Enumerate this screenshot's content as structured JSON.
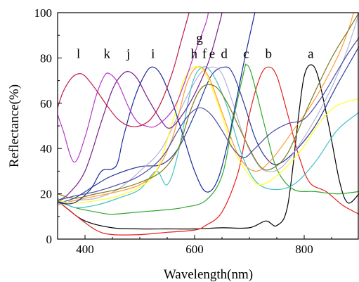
{
  "chart_data": {
    "type": "line",
    "xlabel": "Wavelength(nm)",
    "ylabel": "Reflectance(%)",
    "xlim": [
      350,
      900
    ],
    "ylim": [
      0,
      100
    ],
    "xticks": [
      400,
      600,
      800
    ],
    "yticks": [
      0,
      20,
      40,
      60,
      80,
      100
    ],
    "grid": false,
    "series": [
      {
        "name": "a",
        "color": "#000000",
        "label_pos": [
          812,
          80
        ],
        "points": [
          [
            350,
            17
          ],
          [
            370,
            13
          ],
          [
            400,
            8
          ],
          [
            450,
            5
          ],
          [
            500,
            4.5
          ],
          [
            550,
            4.5
          ],
          [
            600,
            4.5
          ],
          [
            650,
            5
          ],
          [
            700,
            5
          ],
          [
            730,
            8
          ],
          [
            750,
            6
          ],
          [
            770,
            15
          ],
          [
            790,
            55
          ],
          [
            800,
            72
          ],
          [
            812,
            77
          ],
          [
            825,
            72
          ],
          [
            845,
            50
          ],
          [
            865,
            25
          ],
          [
            880,
            16
          ],
          [
            900,
            20
          ]
        ]
      },
      {
        "name": "b",
        "color": "#e8201a",
        "label_pos": [
          735,
          80
        ],
        "points": [
          [
            350,
            17
          ],
          [
            380,
            11
          ],
          [
            420,
            4
          ],
          [
            450,
            2
          ],
          [
            500,
            2
          ],
          [
            550,
            3
          ],
          [
            600,
            4
          ],
          [
            620,
            6
          ],
          [
            650,
            12
          ],
          [
            680,
            30
          ],
          [
            700,
            55
          ],
          [
            720,
            72
          ],
          [
            735,
            76
          ],
          [
            750,
            72
          ],
          [
            770,
            55
          ],
          [
            790,
            37
          ],
          [
            810,
            25
          ],
          [
            840,
            21
          ],
          [
            870,
            15
          ],
          [
            900,
            11
          ]
        ]
      },
      {
        "name": "c",
        "color": "#2ea82e",
        "label_pos": [
          694,
          80
        ],
        "points": [
          [
            350,
            17
          ],
          [
            380,
            14
          ],
          [
            420,
            12
          ],
          [
            450,
            11
          ],
          [
            500,
            12
          ],
          [
            550,
            13
          ],
          [
            580,
            14
          ],
          [
            620,
            17
          ],
          [
            650,
            28
          ],
          [
            670,
            52
          ],
          [
            690,
            74
          ],
          [
            695,
            77
          ],
          [
            705,
            72
          ],
          [
            730,
            48
          ],
          [
            750,
            31
          ],
          [
            780,
            22
          ],
          [
            820,
            21
          ],
          [
            860,
            20
          ],
          [
            900,
            21
          ]
        ]
      },
      {
        "name": "d",
        "color": "#2a3a9a",
        "label_pos": [
          654,
          80
        ],
        "points": [
          [
            350,
            16
          ],
          [
            380,
            18
          ],
          [
            420,
            24
          ],
          [
            450,
            28
          ],
          [
            500,
            32
          ],
          [
            540,
            33
          ],
          [
            570,
            40
          ],
          [
            600,
            55
          ],
          [
            630,
            72
          ],
          [
            655,
            76
          ],
          [
            670,
            73
          ],
          [
            690,
            60
          ],
          [
            710,
            45
          ],
          [
            730,
            36
          ],
          [
            750,
            33
          ],
          [
            780,
            38
          ],
          [
            820,
            50
          ],
          [
            860,
            68
          ],
          [
            900,
            85
          ]
        ]
      },
      {
        "name": "e",
        "color": "#b3b3d9",
        "label_pos": [
          632,
          80
        ],
        "points": [
          [
            350,
            15
          ],
          [
            380,
            17
          ],
          [
            420,
            18
          ],
          [
            460,
            22
          ],
          [
            500,
            30
          ],
          [
            540,
            40
          ],
          [
            580,
            60
          ],
          [
            610,
            73
          ],
          [
            632,
            76
          ],
          [
            650,
            73
          ],
          [
            670,
            60
          ],
          [
            690,
            45
          ],
          [
            710,
            35
          ],
          [
            730,
            30
          ],
          [
            760,
            32
          ],
          [
            800,
            45
          ],
          [
            840,
            62
          ],
          [
            870,
            78
          ],
          [
            890,
            92
          ],
          [
            900,
            100
          ]
        ]
      },
      {
        "name": "f",
        "color": "#40c0c8",
        "label_pos": [
          618,
          80
        ],
        "points": [
          [
            350,
            18
          ],
          [
            380,
            14
          ],
          [
            420,
            15
          ],
          [
            460,
            18
          ],
          [
            500,
            22
          ],
          [
            530,
            30
          ],
          [
            550,
            24
          ],
          [
            570,
            38
          ],
          [
            595,
            68
          ],
          [
            615,
            76
          ],
          [
            635,
            72
          ],
          [
            660,
            58
          ],
          [
            685,
            38
          ],
          [
            710,
            26
          ],
          [
            740,
            22
          ],
          [
            780,
            24
          ],
          [
            820,
            34
          ],
          [
            860,
            48
          ],
          [
            900,
            56
          ]
        ]
      },
      {
        "name": "g",
        "color": "#ff9b39",
        "label_pos": [
          609,
          87
        ],
        "points": [
          [
            350,
            15
          ],
          [
            380,
            17
          ],
          [
            420,
            19
          ],
          [
            460,
            21
          ],
          [
            500,
            24
          ],
          [
            530,
            30
          ],
          [
            560,
            45
          ],
          [
            585,
            68
          ],
          [
            605,
            76
          ],
          [
            625,
            72
          ],
          [
            650,
            56
          ],
          [
            680,
            37
          ],
          [
            710,
            30
          ],
          [
            740,
            35
          ],
          [
            780,
            48
          ],
          [
            820,
            62
          ],
          [
            860,
            80
          ],
          [
            880,
            92
          ],
          [
            890,
            100
          ]
        ]
      },
      {
        "name": "h",
        "color": "#ffff1a",
        "label_pos": [
          599,
          80
        ],
        "points": [
          [
            350,
            17
          ],
          [
            380,
            16
          ],
          [
            420,
            17
          ],
          [
            460,
            19
          ],
          [
            500,
            23
          ],
          [
            530,
            30
          ],
          [
            560,
            52
          ],
          [
            580,
            70
          ],
          [
            600,
            76
          ],
          [
            620,
            73
          ],
          [
            645,
            58
          ],
          [
            670,
            40
          ],
          [
            700,
            28
          ],
          [
            720,
            24
          ],
          [
            750,
            28
          ],
          [
            790,
            38
          ],
          [
            830,
            52
          ],
          [
            860,
            59
          ],
          [
            900,
            62
          ]
        ]
      },
      {
        "name": "i",
        "color": "#1a2a9a",
        "label_pos": [
          524,
          80
        ],
        "points": [
          [
            350,
            16
          ],
          [
            380,
            16
          ],
          [
            410,
            22
          ],
          [
            430,
            30
          ],
          [
            450,
            31
          ],
          [
            460,
            34
          ],
          [
            470,
            45
          ],
          [
            490,
            62
          ],
          [
            510,
            73
          ],
          [
            524,
            76
          ],
          [
            540,
            72
          ],
          [
            560,
            60
          ],
          [
            580,
            45
          ],
          [
            600,
            30
          ],
          [
            620,
            21
          ],
          [
            640,
            25
          ],
          [
            660,
            42
          ],
          [
            690,
            78
          ],
          [
            710,
            100
          ]
        ]
      },
      {
        "name": "j",
        "color": "#7a1a8a",
        "label_pos": [
          479,
          80
        ],
        "points": [
          [
            350,
            17
          ],
          [
            370,
            20
          ],
          [
            400,
            30
          ],
          [
            430,
            52
          ],
          [
            450,
            66
          ],
          [
            465,
            72
          ],
          [
            479,
            74
          ],
          [
            495,
            71
          ],
          [
            515,
            62
          ],
          [
            540,
            52
          ],
          [
            555,
            49
          ],
          [
            575,
            54
          ],
          [
            600,
            64
          ],
          [
            625,
            78
          ],
          [
            645,
            95
          ],
          [
            650,
            100
          ]
        ]
      },
      {
        "name": "k",
        "color": "#b838c8",
        "label_pos": [
          440,
          80
        ],
        "points": [
          [
            350,
            55
          ],
          [
            360,
            48
          ],
          [
            380,
            34
          ],
          [
            400,
            45
          ],
          [
            420,
            63
          ],
          [
            435,
            72
          ],
          [
            445,
            73
          ],
          [
            460,
            69
          ],
          [
            480,
            58
          ],
          [
            495,
            52
          ],
          [
            510,
            50
          ],
          [
            530,
            50
          ],
          [
            560,
            57
          ],
          [
            580,
            68
          ],
          [
            600,
            82
          ],
          [
            620,
            95
          ],
          [
            625,
            100
          ]
        ]
      },
      {
        "name": "l",
        "color": "#c0184a",
        "label_pos": [
          388,
          80
        ],
        "points": [
          [
            350,
            58
          ],
          [
            360,
            65
          ],
          [
            375,
            71
          ],
          [
            388,
            73
          ],
          [
            400,
            72
          ],
          [
            420,
            66
          ],
          [
            440,
            59
          ],
          [
            460,
            53
          ],
          [
            480,
            50
          ],
          [
            500,
            50
          ],
          [
            520,
            53
          ],
          [
            540,
            61
          ],
          [
            560,
            74
          ],
          [
            575,
            87
          ],
          [
            590,
            100
          ]
        ]
      },
      {
        "name": "",
        "color": "#7a7a1a",
        "label_pos": null,
        "points": [
          [
            350,
            20
          ],
          [
            380,
            18
          ],
          [
            420,
            20
          ],
          [
            460,
            22
          ],
          [
            500,
            25
          ],
          [
            540,
            30
          ],
          [
            570,
            40
          ],
          [
            590,
            55
          ],
          [
            605,
            64
          ],
          [
            620,
            68
          ],
          [
            640,
            67
          ],
          [
            660,
            60
          ],
          [
            680,
            50
          ],
          [
            700,
            40
          ],
          [
            720,
            32
          ],
          [
            740,
            31
          ],
          [
            770,
            38
          ],
          [
            810,
            60
          ],
          [
            850,
            80
          ],
          [
            880,
            92
          ],
          [
            900,
            100
          ]
        ]
      },
      {
        "name": "",
        "color": "#4a4aa8",
        "label_pos": null,
        "points": [
          [
            350,
            17
          ],
          [
            380,
            19
          ],
          [
            420,
            21
          ],
          [
            460,
            24
          ],
          [
            500,
            28
          ],
          [
            540,
            36
          ],
          [
            570,
            48
          ],
          [
            590,
            55
          ],
          [
            610,
            58
          ],
          [
            630,
            55
          ],
          [
            650,
            48
          ],
          [
            670,
            40
          ],
          [
            690,
            36
          ],
          [
            710,
            40
          ],
          [
            740,
            47
          ],
          [
            770,
            51
          ],
          [
            800,
            53
          ],
          [
            830,
            62
          ],
          [
            860,
            74
          ],
          [
            880,
            82
          ],
          [
            900,
            89
          ]
        ]
      }
    ]
  }
}
